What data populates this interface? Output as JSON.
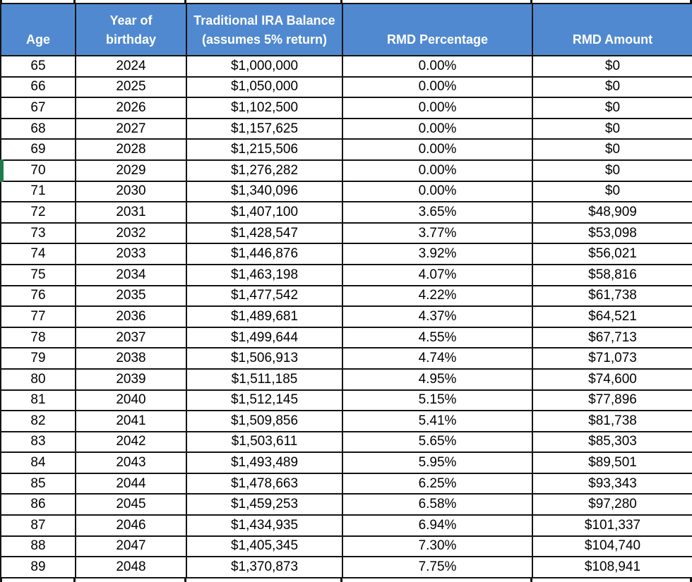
{
  "theme": {
    "header_bg": "#5089D0",
    "header_text": "#FFFFFF",
    "grid_border": "#141414",
    "row_indicator_green": "#1F7A4C"
  },
  "table": {
    "columns": [
      {
        "id": "age",
        "label_lines": [
          "Age"
        ]
      },
      {
        "id": "year",
        "label_lines": [
          "Year of",
          "birthday"
        ]
      },
      {
        "id": "balance",
        "label_lines": [
          "Traditional IRA Balance",
          "(assumes 5% return)"
        ]
      },
      {
        "id": "rmd-pct",
        "label_lines": [
          "RMD Percentage"
        ]
      },
      {
        "id": "rmd-amt",
        "label_lines": [
          "RMD Amount"
        ]
      }
    ],
    "rows": [
      [
        "65",
        "2024",
        "$1,000,000",
        "0.00%",
        "$0"
      ],
      [
        "66",
        "2025",
        "$1,050,000",
        "0.00%",
        "$0"
      ],
      [
        "67",
        "2026",
        "$1,102,500",
        "0.00%",
        "$0"
      ],
      [
        "68",
        "2027",
        "$1,157,625",
        "0.00%",
        "$0"
      ],
      [
        "69",
        "2028",
        "$1,215,506",
        "0.00%",
        "$0"
      ],
      [
        "70",
        "2029",
        "$1,276,282",
        "0.00%",
        "$0"
      ],
      [
        "71",
        "2030",
        "$1,340,096",
        "0.00%",
        "$0"
      ],
      [
        "72",
        "2031",
        "$1,407,100",
        "3.65%",
        "$48,909"
      ],
      [
        "73",
        "2032",
        "$1,428,547",
        "3.77%",
        "$53,098"
      ],
      [
        "74",
        "2033",
        "$1,446,876",
        "3.92%",
        "$56,021"
      ],
      [
        "75",
        "2034",
        "$1,463,198",
        "4.07%",
        "$58,816"
      ],
      [
        "76",
        "2035",
        "$1,477,542",
        "4.22%",
        "$61,738"
      ],
      [
        "77",
        "2036",
        "$1,489,681",
        "4.37%",
        "$64,521"
      ],
      [
        "78",
        "2037",
        "$1,499,644",
        "4.55%",
        "$67,713"
      ],
      [
        "79",
        "2038",
        "$1,506,913",
        "4.74%",
        "$71,073"
      ],
      [
        "80",
        "2039",
        "$1,511,185",
        "4.95%",
        "$74,600"
      ],
      [
        "81",
        "2040",
        "$1,512,145",
        "5.15%",
        "$77,896"
      ],
      [
        "82",
        "2041",
        "$1,509,856",
        "5.41%",
        "$81,738"
      ],
      [
        "83",
        "2042",
        "$1,503,611",
        "5.65%",
        "$85,303"
      ],
      [
        "84",
        "2043",
        "$1,493,489",
        "5.95%",
        "$89,501"
      ],
      [
        "85",
        "2044",
        "$1,478,663",
        "6.25%",
        "$93,343"
      ],
      [
        "86",
        "2045",
        "$1,459,253",
        "6.58%",
        "$97,280"
      ],
      [
        "87",
        "2046",
        "$1,434,935",
        "6.94%",
        "$101,337"
      ],
      [
        "88",
        "2047",
        "$1,405,345",
        "7.30%",
        "$104,740"
      ],
      [
        "89",
        "2048",
        "$1,370,873",
        "7.75%",
        "$108,941"
      ]
    ],
    "selected_row_age": "70"
  }
}
